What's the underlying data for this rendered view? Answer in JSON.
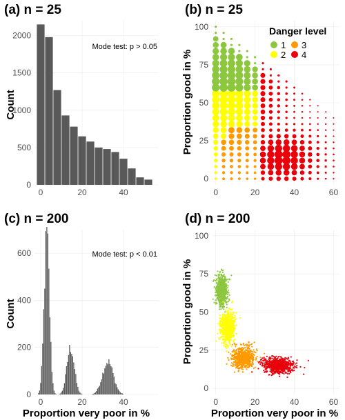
{
  "chart_data": [
    {
      "panel": "a",
      "type": "bar",
      "title": "(a) n = 25",
      "xlabel": "",
      "ylabel": "Count",
      "annotation": "Mode test: p > 0.05",
      "xlim": [
        -3,
        57
      ],
      "ylim": [
        0,
        2200
      ],
      "xticks": [
        0,
        20,
        40
      ],
      "yticks": [
        0,
        500,
        1000,
        1500,
        2000
      ],
      "bin_width": 4,
      "x": [
        0,
        4,
        8,
        12,
        16,
        20,
        24,
        28,
        32,
        36,
        40,
        44,
        48,
        52
      ],
      "values": [
        2150,
        1980,
        1270,
        930,
        780,
        650,
        580,
        500,
        480,
        440,
        350,
        220,
        100,
        70
      ]
    },
    {
      "panel": "b",
      "type": "scatter",
      "title": "(b) n = 25",
      "xlabel": "",
      "ylabel": "Proportion good in %",
      "xlim": [
        -2,
        63
      ],
      "ylim": [
        -4,
        104
      ],
      "xticks": [
        0,
        20,
        40,
        60
      ],
      "yticks": [
        0,
        25,
        50,
        75,
        100
      ],
      "legend": {
        "title": "Danger level",
        "position": "top-right",
        "entries": [
          {
            "label": "1",
            "color": "#8dc63f"
          },
          {
            "label": "2",
            "color": "#ffff00"
          },
          {
            "label": "3",
            "color": "#ff9900"
          },
          {
            "label": "4",
            "color": "#e8000b"
          }
        ]
      },
      "colors": {
        "1": "#8dc63f",
        "2": "#ffff00",
        "3": "#ff9900",
        "4": "#e8000b"
      },
      "grid_step": 4
    },
    {
      "panel": "c",
      "type": "bar",
      "title": "(c) n = 200",
      "xlabel": "Proportion very poor in %",
      "ylabel": "Count",
      "annotation": "Mode test: p < 0.01",
      "xlim": [
        -3,
        57
      ],
      "ylim": [
        0,
        700
      ],
      "xticks": [
        0,
        20,
        40
      ],
      "yticks": [
        0,
        200,
        400,
        600
      ],
      "bin_width": 0.5,
      "peaks": [
        {
          "center": 3,
          "height": 670,
          "sd": 1.3
        },
        {
          "center": 14.5,
          "height": 200,
          "sd": 1.8
        },
        {
          "center": 32.5,
          "height": 140,
          "sd": 2.6
        }
      ]
    },
    {
      "panel": "d",
      "type": "scatter",
      "title": "(d) n = 200",
      "xlabel": "Proportion very poor in %",
      "ylabel": "Proportion good in %",
      "xlim": [
        -2,
        63
      ],
      "ylim": [
        -4,
        104
      ],
      "xticks": [
        0,
        20,
        40,
        60
      ],
      "yticks": [
        0,
        25,
        50,
        75,
        100
      ],
      "clusters": [
        {
          "level": "1",
          "color": "#8dc63f",
          "cx": 3,
          "cy": 64,
          "sx": 1.3,
          "sy": 5
        },
        {
          "level": "2",
          "color": "#ffff00",
          "cx": 6,
          "cy": 40,
          "sx": 1.8,
          "sy": 5
        },
        {
          "level": "3",
          "color": "#ff9900",
          "cx": 14,
          "cy": 20,
          "sx": 2.8,
          "sy": 3.5
        },
        {
          "level": "4",
          "color": "#e8000b",
          "cx": 32,
          "cy": 15,
          "sx": 4,
          "sy": 2.5
        }
      ]
    }
  ]
}
